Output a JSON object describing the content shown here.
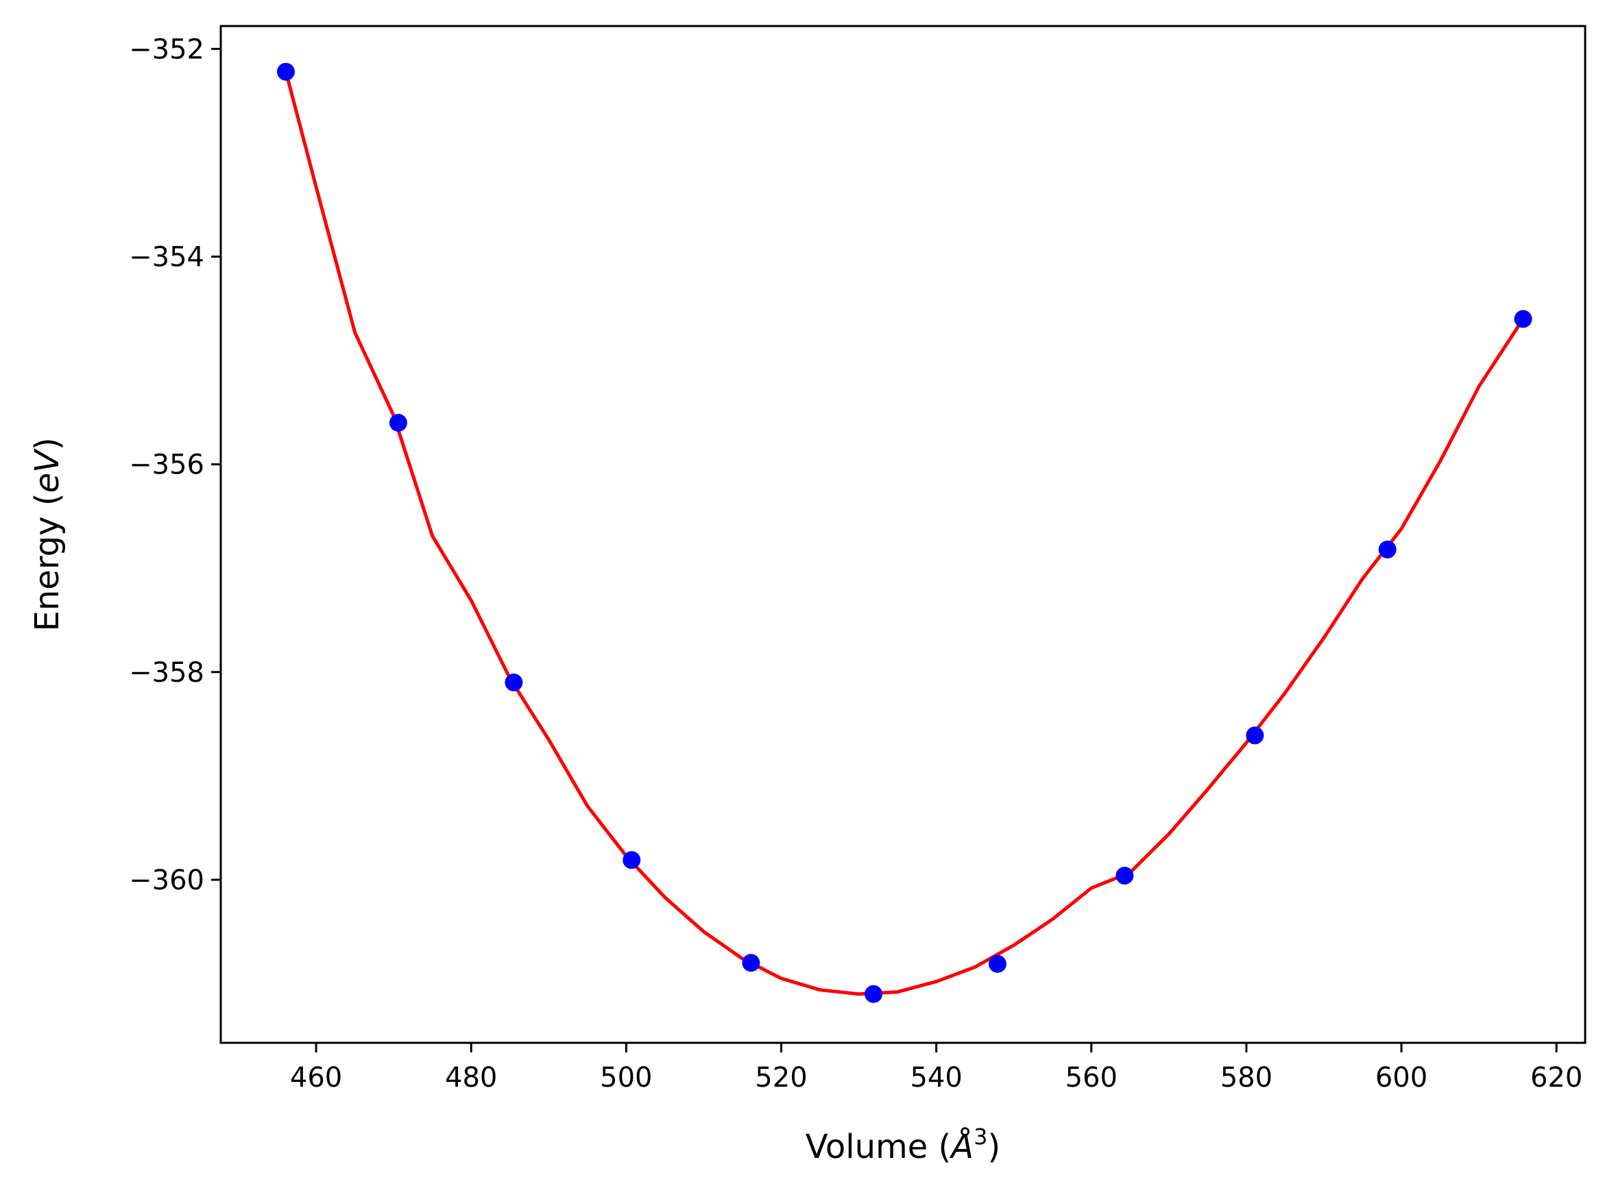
{
  "chart_data": {
    "type": "scatter",
    "title": "",
    "xlabel": "Volume",
    "xlabel_unit": "Å",
    "xlabel_unit_power": "3",
    "ylabel": "Energy",
    "ylabel_unit": "eV",
    "xlim": [
      447.7,
      623.7
    ],
    "ylim": [
      -361.57,
      -351.78
    ],
    "x_ticks": [
      460,
      480,
      500,
      520,
      540,
      560,
      580,
      600,
      620
    ],
    "x_tick_labels": [
      "460",
      "480",
      "500",
      "520",
      "540",
      "560",
      "580",
      "600",
      "620"
    ],
    "y_ticks": [
      -352,
      -354,
      -356,
      -358,
      -360
    ],
    "y_tick_labels": [
      "−352",
      "−354",
      "−356",
      "−358",
      "−360"
    ],
    "grid": false,
    "legend": false,
    "series": [
      {
        "kind": "points",
        "color": "#0000ff",
        "x": [
          456.1,
          470.6,
          485.5,
          500.7,
          516.1,
          531.9,
          547.9,
          564.3,
          581.1,
          598.2,
          615.7
        ],
        "y": [
          -352.22,
          -355.6,
          -358.1,
          -359.81,
          -360.8,
          -361.1,
          -360.81,
          -359.96,
          -358.61,
          -356.82,
          -354.6
        ]
      },
      {
        "kind": "fit-curve",
        "color": "#ff0000",
        "x": [
          456.1,
          460,
          465,
          470,
          475,
          480,
          485,
          490,
          495,
          500,
          505,
          510,
          515,
          520,
          525,
          530,
          535,
          540,
          545,
          550,
          555,
          560,
          565,
          570,
          575,
          580,
          585,
          590,
          595,
          600,
          605,
          610,
          615.7
        ],
        "y": [
          -352.22,
          -353.33,
          -354.73,
          -355.53,
          -356.69,
          -357.31,
          -358.06,
          -358.65,
          -359.29,
          -359.77,
          -360.17,
          -360.5,
          -360.76,
          -360.95,
          -361.06,
          -361.1,
          -361.08,
          -360.98,
          -360.84,
          -360.63,
          -360.38,
          -360.08,
          -359.93,
          -359.56,
          -359.13,
          -358.68,
          -358.2,
          -357.67,
          -357.1,
          -356.62,
          -355.97,
          -355.25,
          -354.6
        ]
      }
    ]
  }
}
